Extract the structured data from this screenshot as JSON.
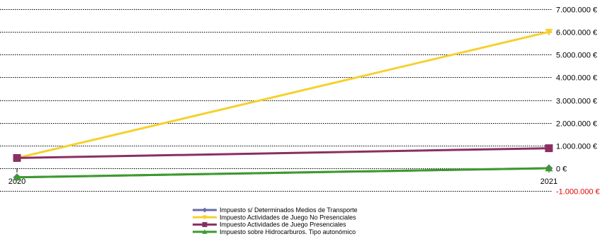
{
  "chart_data": {
    "type": "line",
    "x": [
      "2020",
      "2021"
    ],
    "ylim": [
      -1000000,
      7000000
    ],
    "ytick_values": [
      -1000000,
      0,
      1000000,
      2000000,
      3000000,
      4000000,
      5000000,
      6000000,
      7000000
    ],
    "ytick_labels": [
      "-1.000.000 €",
      "0 €",
      "1.000.000 €",
      "2.000.000 €",
      "3.000.000 €",
      "4.000.000 €",
      "5.000.000 €",
      "6.000.000 €",
      "7.000.000 €"
    ],
    "negative_tick_color": "#e00000",
    "grid": true,
    "legend_position": "bottom",
    "series": [
      {
        "name": "Impuesto s/ Determinados Medios de Transporte",
        "values": [
          -400000,
          0
        ],
        "color": "#6b6ba8",
        "marker": "diamond"
      },
      {
        "name": "Impuesto Actividades de Juego No Presenciales",
        "values": [
          450000,
          6000000
        ],
        "color": "#f5d130",
        "marker": "triangle-down"
      },
      {
        "name": "Impuesto Actividades de Juego Presenciales",
        "values": [
          450000,
          880000
        ],
        "color": "#8a2f62",
        "marker": "square"
      },
      {
        "name": "Impuesto sobre Hidrocarburos. Tipo autonómico",
        "values": [
          -400000,
          0
        ],
        "color": "#3d9b2c",
        "marker": "triangle-up"
      }
    ]
  }
}
